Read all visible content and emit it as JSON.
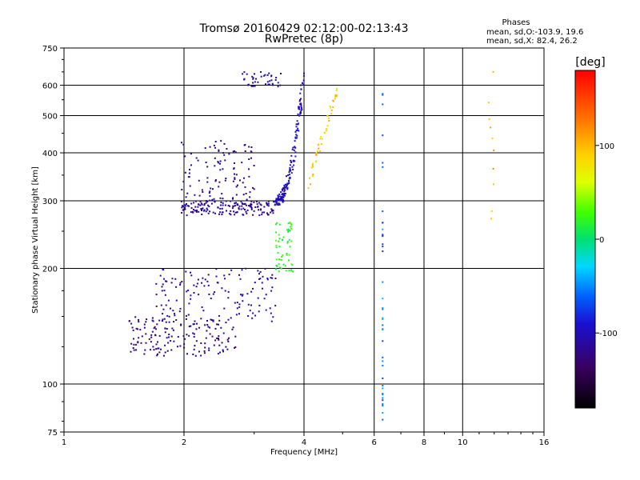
{
  "chart_data": {
    "type": "scatter",
    "title": "Tromsø 20160429 02:12:00-02:13:43",
    "subtitle": "RwPretec (8p)",
    "xlabel": "Frequency [MHz]",
    "ylabel": "Stationary phase Virtual Height [km]",
    "x_scale": "log",
    "y_scale": "log",
    "xlim": [
      1,
      16
    ],
    "ylim": [
      75,
      750
    ],
    "x_ticks": [
      "1",
      "2",
      "4",
      "6",
      "8",
      "10",
      "16"
    ],
    "x_tick_values": [
      1,
      2,
      4,
      6,
      8,
      10,
      16
    ],
    "y_ticks": [
      "75",
      "100",
      "200",
      "300",
      "400",
      "500",
      "600",
      "750"
    ],
    "y_tick_values": [
      75,
      100,
      200,
      300,
      400,
      500,
      600,
      750
    ],
    "grid": true,
    "phase_stats": {
      "heading": "Phases",
      "line_o": "mean, sd,O:-103.9, 19.6",
      "line_x": "mean, sd,X:  82.4, 26.2"
    },
    "colorbar": {
      "label": "[deg]",
      "range": [
        -180,
        180
      ],
      "ticks": [
        "100",
        "0",
        "-100"
      ],
      "tick_values": [
        100,
        0,
        -100
      ]
    },
    "point_groups": [
      {
        "group": "low-o-trace",
        "f_range": [
          1.45,
          2.7
        ],
        "h_range": [
          118,
          150
        ],
        "phase": -125,
        "count": 160
      },
      {
        "group": "low-o-trace-upper",
        "f_range": [
          1.7,
          3.4
        ],
        "h_range": [
          145,
          200
        ],
        "phase": -110,
        "count": 140
      },
      {
        "group": "f-region-o-trace",
        "f_range": [
          1.97,
          3.4
        ],
        "h_range": [
          275,
          300
        ],
        "phase": -115,
        "count": 150
      },
      {
        "group": "f-region-o-rise",
        "f_range": [
          3.4,
          4.0
        ],
        "h_range": [
          300,
          640
        ],
        "phase": -100,
        "count": 150
      },
      {
        "group": "f-spread",
        "f_range": [
          1.97,
          3.0
        ],
        "h_range": [
          290,
          430
        ],
        "phase": -120,
        "count": 120
      },
      {
        "group": "top-cluster",
        "f_range": [
          2.8,
          3.5
        ],
        "h_range": [
          595,
          650
        ],
        "phase": -110,
        "count": 40
      },
      {
        "group": "x-trace-mid",
        "f_range": [
          3.4,
          3.75
        ],
        "h_range": [
          195,
          265
        ],
        "phase": 20,
        "count": 60
      },
      {
        "group": "x-trace-upper",
        "f_range": [
          4.1,
          4.85
        ],
        "h_range": [
          330,
          590
        ],
        "phase": 90,
        "count": 50
      },
      {
        "group": "interference-column",
        "f_range": [
          6.3,
          6.3
        ],
        "h_range": [
          80,
          590
        ],
        "phase": -60,
        "count": 40
      },
      {
        "group": "sparse-high",
        "f_range": [
          11.6,
          12.0
        ],
        "h_range": [
          260,
          660
        ],
        "phase": 100,
        "count": 10
      }
    ]
  }
}
